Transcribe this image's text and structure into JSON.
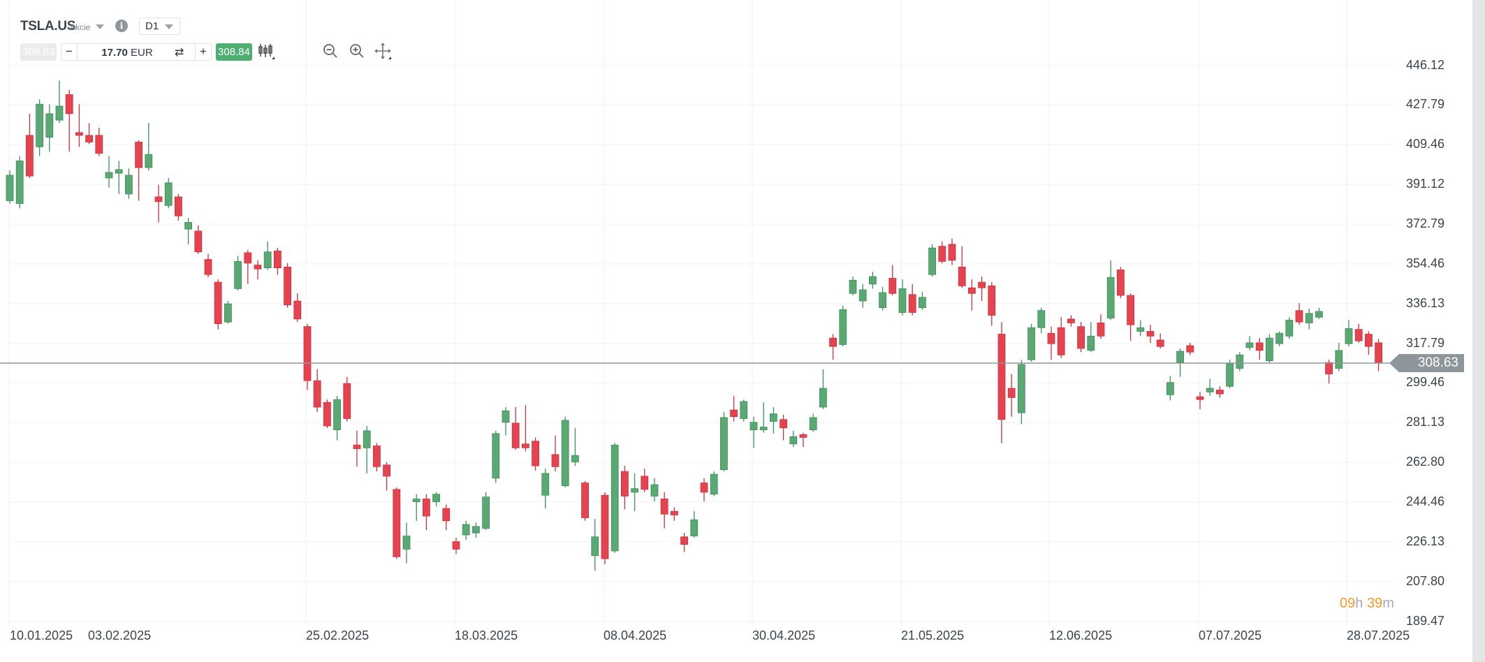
{
  "header": {
    "symbol": "TSLA.US",
    "instrument_type": "Akcie",
    "info_icon": "info-icon",
    "timeframe": "D1"
  },
  "trade_bar": {
    "bid": "308.63",
    "ask": "308.84",
    "minus": "−",
    "plus": "+",
    "amount": "17.70",
    "currency": "EUR",
    "swap_icon": "⇄",
    "tools": [
      "candlestick-type-icon",
      "zoom-out-icon",
      "zoom-in-icon",
      "move-icon"
    ]
  },
  "colors": {
    "up": "#5aa874",
    "down": "#e5434f",
    "price_line": "#8d969b",
    "timer": "#f39a2b"
  },
  "countdown": {
    "hours": "09",
    "h": "h",
    "minutes": "39",
    "m": "m"
  },
  "chart_data": {
    "type": "candlestick",
    "title": "TSLA.US D1",
    "current_price": "308.63",
    "y_ticks": [
      "446.12",
      "427.79",
      "409.46",
      "391.12",
      "372.79",
      "354.46",
      "336.13",
      "317.79",
      "299.46",
      "281.13",
      "262.80",
      "244.46",
      "226.13",
      "207.80",
      "189.47"
    ],
    "ylim": [
      189.47,
      446.12
    ],
    "x_ticks": [
      "10.01.2025",
      "03.02.2025",
      "25.02.2025",
      "18.03.2025",
      "08.04.2025",
      "30.04.2025",
      "21.05.2025",
      "12.06.2025",
      "07.07.2025",
      "28.07.2025"
    ],
    "ohlc_columns": [
      "open",
      "high",
      "low",
      "close"
    ],
    "ohlc": [
      [
        383.6,
        397.6,
        382.3,
        395.4
      ],
      [
        382.3,
        404.2,
        380.1,
        402.0
      ],
      [
        413.8,
        423.8,
        394.1,
        395.0
      ],
      [
        408.5,
        430.4,
        404.2,
        428.2
      ],
      [
        412.9,
        428.2,
        406.3,
        423.8
      ],
      [
        420.8,
        439.1,
        419.5,
        427.3
      ],
      [
        432.6,
        434.8,
        406.3,
        423.8
      ],
      [
        415.1,
        428.2,
        408.5,
        413.8
      ],
      [
        413.8,
        419.5,
        409.8,
        410.7
      ],
      [
        413.8,
        417.3,
        404.2,
        405.5
      ],
      [
        394.1,
        404.2,
        389.7,
        396.7
      ],
      [
        396.3,
        402.0,
        386.7,
        398.0
      ],
      [
        386.7,
        398.5,
        384.5,
        395.4
      ],
      [
        410.7,
        411.6,
        383.6,
        398.9
      ],
      [
        398.9,
        419.5,
        397.6,
        405.0
      ],
      [
        385.4,
        391.0,
        373.6,
        383.2
      ],
      [
        381.4,
        394.1,
        380.1,
        391.9
      ],
      [
        385.4,
        386.7,
        374.4,
        376.6
      ],
      [
        370.5,
        375.7,
        363.5,
        373.6
      ],
      [
        369.6,
        372.2,
        359.1,
        360.0
      ],
      [
        356.5,
        359.1,
        348.2,
        349.5
      ],
      [
        346.0,
        347.3,
        324.2,
        326.8
      ],
      [
        327.6,
        337.3,
        326.8,
        336.0
      ],
      [
        343.0,
        358.2,
        342.1,
        355.6
      ],
      [
        359.6,
        360.9,
        345.1,
        354.8
      ],
      [
        353.9,
        356.1,
        347.3,
        352.1
      ],
      [
        352.6,
        364.8,
        351.7,
        360.0
      ],
      [
        360.4,
        361.8,
        349.5,
        352.6
      ],
      [
        353.0,
        354.8,
        334.2,
        335.5
      ],
      [
        337.3,
        340.8,
        327.6,
        329.0
      ],
      [
        325.5,
        326.8,
        296.2,
        300.5
      ],
      [
        300.5,
        305.8,
        286.1,
        288.3
      ],
      [
        290.5,
        291.8,
        278.7,
        279.6
      ],
      [
        277.8,
        293.5,
        273.0,
        291.8
      ],
      [
        299.2,
        302.3,
        281.7,
        283.0
      ],
      [
        270.8,
        277.4,
        260.8,
        269.1
      ],
      [
        269.5,
        279.6,
        257.7,
        277.4
      ],
      [
        270.4,
        271.7,
        258.6,
        260.8
      ],
      [
        261.6,
        262.9,
        249.8,
        256.4
      ],
      [
        250.3,
        251.2,
        218.3,
        219.2
      ],
      [
        222.7,
        235.0,
        216.2,
        228.8
      ],
      [
        244.6,
        248.1,
        235.8,
        245.9
      ],
      [
        245.9,
        248.1,
        231.5,
        238.0
      ],
      [
        244.6,
        249.0,
        242.4,
        248.1
      ],
      [
        241.5,
        243.3,
        231.5,
        235.8
      ],
      [
        226.2,
        228.0,
        220.5,
        222.7
      ],
      [
        229.3,
        235.8,
        227.1,
        234.1
      ],
      [
        230.2,
        235.0,
        228.0,
        233.2
      ],
      [
        232.3,
        249.0,
        231.5,
        246.8
      ],
      [
        255.5,
        277.4,
        253.3,
        276.1
      ],
      [
        281.3,
        288.3,
        275.2,
        286.6
      ],
      [
        280.9,
        288.3,
        268.6,
        269.5
      ],
      [
        271.3,
        289.2,
        267.8,
        269.5
      ],
      [
        272.6,
        274.3,
        259.0,
        261.2
      ],
      [
        247.6,
        259.9,
        241.5,
        257.7
      ],
      [
        266.4,
        275.2,
        258.6,
        260.8
      ],
      [
        252.0,
        283.9,
        251.2,
        282.2
      ],
      [
        263.0,
        278.7,
        261.2,
        266.0
      ],
      [
        253.3,
        254.2,
        235.8,
        237.2
      ],
      [
        219.7,
        236.7,
        212.7,
        228.4
      ],
      [
        247.6,
        249.0,
        215.7,
        218.3
      ],
      [
        221.9,
        271.7,
        221.0,
        270.8
      ],
      [
        258.6,
        261.2,
        241.1,
        247.2
      ],
      [
        249.0,
        257.7,
        240.2,
        250.7
      ],
      [
        256.4,
        259.9,
        249.0,
        250.3
      ],
      [
        247.2,
        255.5,
        244.6,
        252.5
      ],
      [
        245.9,
        249.0,
        232.3,
        238.9
      ],
      [
        240.2,
        242.0,
        235.8,
        238.5
      ],
      [
        228.4,
        230.2,
        221.4,
        224.9
      ],
      [
        228.8,
        240.2,
        228.0,
        236.3
      ],
      [
        253.3,
        255.5,
        244.6,
        249.0
      ],
      [
        248.1,
        258.6,
        247.2,
        257.3
      ],
      [
        259.4,
        286.1,
        258.6,
        283.5
      ],
      [
        287.0,
        293.5,
        281.7,
        283.9
      ],
      [
        283.0,
        291.8,
        281.7,
        290.9
      ],
      [
        277.8,
        283.9,
        269.5,
        281.3
      ],
      [
        277.8,
        290.5,
        276.5,
        279.1
      ],
      [
        281.7,
        288.3,
        276.1,
        285.2
      ],
      [
        282.6,
        284.8,
        273.0,
        278.7
      ],
      [
        271.3,
        277.4,
        269.9,
        274.7
      ],
      [
        275.6,
        276.5,
        269.9,
        274.3
      ],
      [
        277.8,
        285.2,
        276.9,
        283.5
      ],
      [
        288.3,
        305.8,
        287.4,
        297.0
      ],
      [
        320.2,
        322.0,
        310.2,
        316.3
      ],
      [
        317.2,
        335.1,
        316.3,
        333.3
      ],
      [
        340.8,
        348.6,
        339.9,
        346.9
      ],
      [
        337.3,
        345.1,
        334.2,
        342.5
      ],
      [
        345.1,
        350.8,
        343.0,
        348.6
      ],
      [
        334.2,
        343.8,
        332.9,
        341.2
      ],
      [
        347.8,
        353.9,
        339.9,
        340.8
      ],
      [
        332.0,
        347.3,
        330.7,
        343.0
      ],
      [
        340.3,
        345.1,
        330.7,
        332.0
      ],
      [
        334.2,
        341.6,
        333.3,
        339.0
      ],
      [
        349.5,
        363.5,
        348.6,
        361.8
      ],
      [
        362.6,
        364.8,
        354.8,
        355.6
      ],
      [
        363.5,
        366.1,
        353.9,
        356.1
      ],
      [
        353.0,
        362.6,
        343.4,
        344.3
      ],
      [
        343.4,
        347.3,
        332.9,
        340.8
      ],
      [
        346.0,
        348.6,
        337.3,
        343.4
      ],
      [
        344.3,
        346.0,
        325.9,
        330.7
      ],
      [
        322.0,
        327.6,
        271.7,
        282.6
      ],
      [
        297.0,
        303.6,
        283.9,
        292.7
      ],
      [
        285.7,
        310.2,
        280.4,
        308.0
      ],
      [
        310.2,
        326.8,
        309.3,
        325.0
      ],
      [
        325.0,
        334.2,
        322.4,
        332.9
      ],
      [
        322.4,
        325.5,
        310.2,
        317.6
      ],
      [
        325.0,
        329.8,
        311.0,
        312.4
      ],
      [
        329.0,
        330.7,
        325.5,
        327.2
      ],
      [
        325.5,
        327.6,
        313.7,
        315.4
      ],
      [
        314.5,
        327.6,
        313.7,
        321.1
      ],
      [
        327.2,
        331.1,
        319.8,
        321.1
      ],
      [
        329.4,
        356.1,
        328.5,
        348.2
      ],
      [
        351.7,
        353.0,
        338.6,
        339.9
      ],
      [
        339.9,
        340.8,
        318.9,
        326.3
      ],
      [
        323.3,
        328.5,
        321.1,
        325.0
      ],
      [
        323.3,
        326.3,
        318.0,
        321.1
      ],
      [
        319.3,
        322.4,
        315.4,
        316.3
      ],
      [
        294.0,
        302.7,
        291.4,
        299.7
      ],
      [
        308.9,
        315.4,
        302.3,
        314.1
      ],
      [
        316.7,
        318.0,
        312.4,
        313.7
      ],
      [
        293.1,
        295.3,
        287.4,
        291.8
      ],
      [
        295.3,
        301.4,
        293.5,
        297.0
      ],
      [
        296.2,
        297.9,
        292.7,
        294.4
      ],
      [
        297.9,
        310.2,
        297.0,
        308.4
      ],
      [
        306.2,
        313.7,
        304.9,
        312.4
      ],
      [
        315.8,
        321.1,
        314.5,
        318.0
      ],
      [
        318.0,
        320.2,
        310.2,
        314.5
      ],
      [
        309.7,
        322.0,
        308.9,
        320.2
      ],
      [
        317.6,
        323.3,
        316.3,
        322.4
      ],
      [
        321.1,
        329.8,
        319.8,
        328.5
      ],
      [
        332.9,
        336.4,
        326.3,
        327.6
      ],
      [
        327.2,
        333.8,
        324.2,
        331.6
      ],
      [
        329.8,
        334.2,
        329.0,
        332.5
      ],
      [
        308.9,
        310.2,
        299.2,
        303.6
      ],
      [
        306.2,
        318.0,
        304.9,
        314.5
      ],
      [
        317.6,
        328.5,
        316.3,
        324.6
      ],
      [
        324.2,
        326.8,
        318.0,
        318.9
      ],
      [
        322.0,
        323.3,
        312.4,
        316.3
      ],
      [
        318.0,
        319.8,
        304.9,
        308.63
      ]
    ]
  }
}
